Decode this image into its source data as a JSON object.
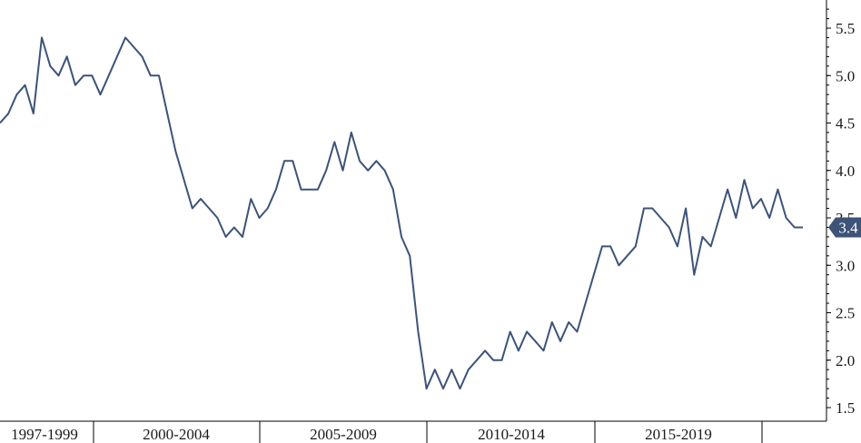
{
  "chart_data": {
    "type": "line",
    "title": "",
    "xlabel": "",
    "ylabel": "",
    "x_tick_labels": [
      "1997-1999",
      "2000-2004",
      "2005-2009",
      "2010-2014",
      "2015-2019"
    ],
    "y_ticks": [
      "1.5",
      "2.0",
      "2.5",
      "3.0",
      "3.5",
      "4.0",
      "4.5",
      "5.0",
      "5.5"
    ],
    "ylim": [
      1.45,
      5.85
    ],
    "y_axis_position": "right",
    "grid": false,
    "legend": "none",
    "last_value_label": "3.4",
    "colors": {
      "line": "#3d5378",
      "label_bg": "#3d5378",
      "axis": "#000000"
    },
    "series": [
      {
        "values": [
          4.5,
          4.6,
          4.8,
          4.9,
          4.6,
          5.4,
          5.1,
          5.0,
          5.2,
          4.9,
          5.0,
          5.0,
          4.8,
          5.0,
          5.2,
          5.4,
          5.3,
          5.2,
          5.0,
          5.0,
          4.6,
          4.2,
          3.9,
          3.6,
          3.7,
          3.6,
          3.5,
          3.3,
          3.4,
          3.3,
          3.7,
          3.5,
          3.6,
          3.8,
          4.1,
          4.1,
          3.8,
          3.8,
          3.8,
          4.0,
          4.3,
          4.0,
          4.4,
          4.1,
          4.0,
          4.1,
          4.0,
          3.8,
          3.3,
          3.1,
          2.3,
          1.7,
          1.9,
          1.7,
          1.9,
          1.7,
          1.9,
          2.0,
          2.1,
          2.0,
          2.0,
          2.3,
          2.1,
          2.3,
          2.2,
          2.1,
          2.4,
          2.2,
          2.4,
          2.3,
          2.6,
          2.9,
          3.2,
          3.2,
          3.0,
          3.1,
          3.2,
          3.6,
          3.6,
          3.5,
          3.4,
          3.2,
          3.6,
          2.9,
          3.3,
          3.2,
          3.5,
          3.8,
          3.5,
          3.9,
          3.6,
          3.7,
          3.5,
          3.8,
          3.5,
          3.4,
          3.4
        ]
      }
    ]
  }
}
